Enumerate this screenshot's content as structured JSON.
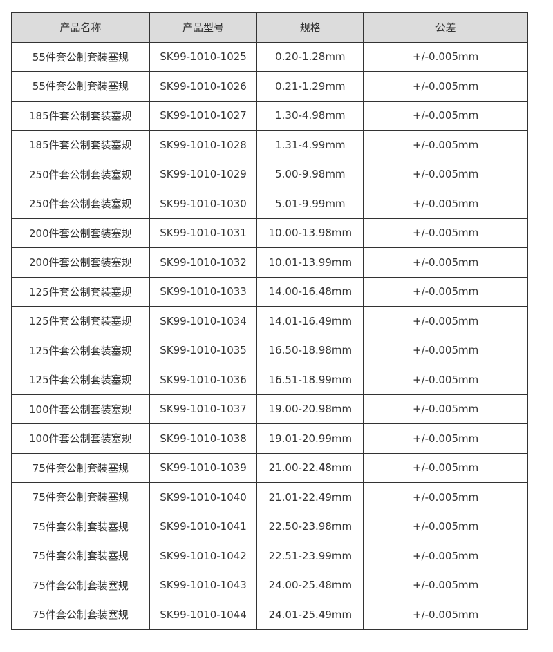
{
  "table": {
    "headers": [
      "产品名称",
      "产品型号",
      "规格",
      "公差"
    ],
    "header_bg": "#dcdcdc",
    "rows": [
      [
        "55件套公制套装塞规",
        "SK99-1010-1025",
        "0.20-1.28mm",
        "+/-0.005mm"
      ],
      [
        "55件套公制套装塞规",
        "SK99-1010-1026",
        "0.21-1.29mm",
        "+/-0.005mm"
      ],
      [
        "185件套公制套装塞规",
        "SK99-1010-1027",
        "1.30-4.98mm",
        "+/-0.005mm"
      ],
      [
        "185件套公制套装塞规",
        "SK99-1010-1028",
        "1.31-4.99mm",
        "+/-0.005mm"
      ],
      [
        "250件套公制套装塞规",
        "SK99-1010-1029",
        "5.00-9.98mm",
        "+/-0.005mm"
      ],
      [
        "250件套公制套装塞规",
        "SK99-1010-1030",
        "5.01-9.99mm",
        "+/-0.005mm"
      ],
      [
        "200件套公制套装塞规",
        "SK99-1010-1031",
        "10.00-13.98mm",
        "+/-0.005mm"
      ],
      [
        "200件套公制套装塞规",
        "SK99-1010-1032",
        "10.01-13.99mm",
        "+/-0.005mm"
      ],
      [
        "125件套公制套装塞规",
        "SK99-1010-1033",
        "14.00-16.48mm",
        "+/-0.005mm"
      ],
      [
        "125件套公制套装塞规",
        "SK99-1010-1034",
        "14.01-16.49mm",
        "+/-0.005mm"
      ],
      [
        "125件套公制套装塞规",
        "SK99-1010-1035",
        "16.50-18.98mm",
        "+/-0.005mm"
      ],
      [
        "125件套公制套装塞规",
        "SK99-1010-1036",
        "16.51-18.99mm",
        "+/-0.005mm"
      ],
      [
        "100件套公制套装塞规",
        "SK99-1010-1037",
        "19.00-20.98mm",
        "+/-0.005mm"
      ],
      [
        "100件套公制套装塞规",
        "SK99-1010-1038",
        "19.01-20.99mm",
        "+/-0.005mm"
      ],
      [
        "75件套公制套装塞规",
        "SK99-1010-1039",
        "21.00-22.48mm",
        "+/-0.005mm"
      ],
      [
        "75件套公制套装塞规",
        "SK99-1010-1040",
        "21.01-22.49mm",
        "+/-0.005mm"
      ],
      [
        "75件套公制套装塞规",
        "SK99-1010-1041",
        "22.50-23.98mm",
        "+/-0.005mm"
      ],
      [
        "75件套公制套装塞规",
        "SK99-1010-1042",
        "22.51-23.99mm",
        "+/-0.005mm"
      ],
      [
        "75件套公制套装塞规",
        "SK99-1010-1043",
        "24.00-25.48mm",
        "+/-0.005mm"
      ],
      [
        "75件套公制套装塞规",
        "SK99-1010-1044",
        "24.01-25.49mm",
        "+/-0.005mm"
      ]
    ]
  }
}
